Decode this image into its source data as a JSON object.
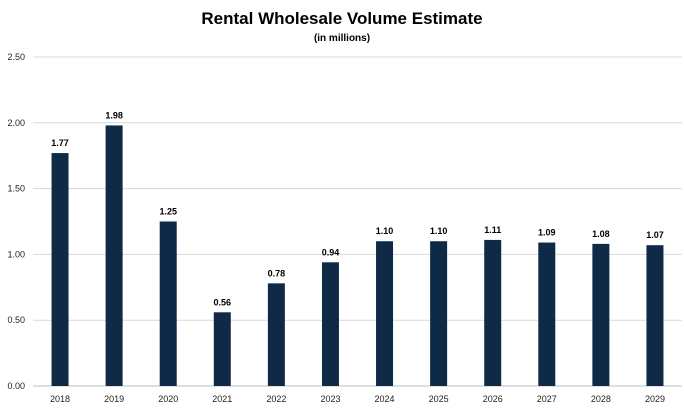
{
  "chart_data": {
    "type": "bar",
    "title": "Rental Wholesale Volume Estimate",
    "subtitle": "(in millions)",
    "xlabel": "",
    "ylabel": "",
    "categories": [
      "2018",
      "2019",
      "2020",
      "2021",
      "2022",
      "2023",
      "2024",
      "2025",
      "2026",
      "2027",
      "2028",
      "2029"
    ],
    "values": [
      1.77,
      1.98,
      1.25,
      0.56,
      0.78,
      0.94,
      1.1,
      1.1,
      1.11,
      1.09,
      1.08,
      1.07
    ],
    "data_labels": [
      "1.77",
      "1.98",
      "1.25",
      "0.56",
      "0.78",
      "0.94",
      "1.10",
      "1.10",
      "1.11",
      "1.09",
      "1.08",
      "1.07"
    ],
    "ylim": [
      0,
      2.5
    ],
    "y_ticks": [
      0,
      0.5,
      1.0,
      1.5,
      2.0,
      2.5
    ],
    "y_tick_labels": [
      "0.00",
      "0.50",
      "1.00",
      "1.50",
      "2.00",
      "2.50"
    ],
    "grid": true,
    "legend": "none",
    "bar_color": "#0f2a47"
  }
}
